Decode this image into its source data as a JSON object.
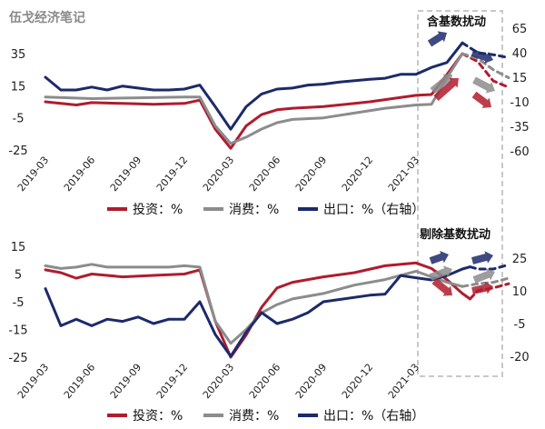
{
  "watermark": "伍戈经济笔记",
  "colors": {
    "investment": "#b01c2e",
    "consumption": "#8c8c8c",
    "export": "#1c2a6b",
    "box": "#c8c8c8",
    "bg": "#ffffff"
  },
  "chart_data": [
    {
      "type": "line",
      "name": "top",
      "annotation": "含基数扰动",
      "x": [
        "2019-03",
        "2019-06",
        "2019-09",
        "2019-12",
        "2020-03",
        "2020-06",
        "2020-09",
        "2020-12",
        "2021-03"
      ],
      "left_ticks": [
        35,
        15,
        -5,
        -25
      ],
      "right_ticks": [
        65,
        40,
        15,
        -10,
        -35,
        -60
      ],
      "legend": [
        {
          "key": "investment",
          "label": "投资：%"
        },
        {
          "key": "consumption",
          "label": "消费：%"
        },
        {
          "key": "export",
          "label": "出口：%（右轴）"
        }
      ],
      "series": [
        {
          "key": "investment",
          "axis": "left",
          "points": [
            [
              0,
              5
            ],
            [
              2,
              3
            ],
            [
              3,
              4.5
            ],
            [
              5,
              4
            ],
            [
              7,
              3.5
            ],
            [
              9,
              4
            ],
            [
              10,
              6
            ],
            [
              11,
              -12
            ],
            [
              12,
              -24
            ],
            [
              13,
              -10
            ],
            [
              14,
              -3
            ],
            [
              15,
              0
            ],
            [
              16,
              1
            ],
            [
              18,
              2
            ],
            [
              21,
              5
            ],
            [
              24,
              9
            ],
            [
              25,
              9.5
            ],
            [
              26,
              22
            ],
            [
              27,
              35
            ]
          ],
          "proj": [
            [
              27,
              35
            ],
            [
              28,
              30
            ],
            [
              29,
              18
            ],
            [
              30,
              14
            ]
          ]
        },
        {
          "key": "consumption",
          "axis": "left",
          "points": [
            [
              0,
              8
            ],
            [
              3,
              7
            ],
            [
              6,
              7.5
            ],
            [
              9,
              8
            ],
            [
              10,
              8
            ],
            [
              11,
              -10
            ],
            [
              12,
              -21
            ],
            [
              13,
              -17
            ],
            [
              14,
              -12
            ],
            [
              15,
              -8
            ],
            [
              16,
              -6
            ],
            [
              18,
              -5
            ],
            [
              20,
              -2
            ],
            [
              22,
              1
            ],
            [
              24,
              3
            ],
            [
              25,
              3.5
            ],
            [
              26,
              20
            ],
            [
              27,
              35
            ]
          ],
          "proj": [
            [
              27,
              35
            ],
            [
              28,
              32
            ],
            [
              29,
              25
            ],
            [
              30,
              20
            ]
          ]
        },
        {
          "key": "export",
          "axis": "right",
          "points": [
            [
              0,
              15
            ],
            [
              1,
              2
            ],
            [
              2,
              2
            ],
            [
              3,
              5
            ],
            [
              4,
              2
            ],
            [
              5,
              6
            ],
            [
              6,
              4
            ],
            [
              7,
              2
            ],
            [
              8,
              2
            ],
            [
              9,
              3
            ],
            [
              10,
              7
            ],
            [
              11,
              -15
            ],
            [
              12,
              -38
            ],
            [
              13,
              -15
            ],
            [
              14,
              -2
            ],
            [
              15,
              3
            ],
            [
              16,
              4
            ],
            [
              17,
              7
            ],
            [
              18,
              8
            ],
            [
              19,
              10
            ],
            [
              21,
              13
            ],
            [
              22,
              14
            ],
            [
              23,
              18
            ],
            [
              24,
              18
            ],
            [
              25,
              25
            ],
            [
              26,
              30
            ],
            [
              27,
              50
            ]
          ],
          "proj": [
            [
              27,
              50
            ],
            [
              28,
              40
            ],
            [
              29,
              38
            ],
            [
              30,
              35
            ]
          ]
        }
      ],
      "arrows": [
        {
          "key": "export",
          "dir": "up"
        },
        {
          "key": "consumption",
          "dir": "up"
        },
        {
          "key": "investment",
          "dir": "up"
        },
        {
          "key": "export",
          "dir": "down"
        },
        {
          "key": "consumption",
          "dir": "down"
        },
        {
          "key": "investment",
          "dir": "down"
        }
      ]
    },
    {
      "type": "line",
      "name": "bottom",
      "annotation": "剔除基数扰动",
      "x": [
        "2019-03",
        "2019-06",
        "2019-09",
        "2019-12",
        "2020-03",
        "2020-06",
        "2020-09",
        "2020-12",
        "2021-03"
      ],
      "left_ticks": [
        15,
        5,
        -5,
        -15,
        -25
      ],
      "right_ticks": [
        25,
        10,
        -5,
        -20
      ],
      "legend": [
        {
          "key": "investment",
          "label": "投资：%"
        },
        {
          "key": "consumption",
          "label": "消费：%"
        },
        {
          "key": "export",
          "label": "出口：%（右轴）"
        }
      ],
      "series": [
        {
          "key": "investment",
          "axis": "left",
          "points": [
            [
              0,
              6.5
            ],
            [
              1,
              5.5
            ],
            [
              2,
              3.5
            ],
            [
              3,
              5
            ],
            [
              4,
              4.5
            ],
            [
              5,
              4
            ],
            [
              7,
              4.5
            ],
            [
              9,
              5
            ],
            [
              10,
              6.5
            ],
            [
              11,
              -12
            ],
            [
              12,
              -25
            ],
            [
              13,
              -17
            ],
            [
              14,
              -7
            ],
            [
              15,
              0
            ],
            [
              16,
              2
            ],
            [
              18,
              4
            ],
            [
              20,
              5.5
            ],
            [
              22,
              8
            ],
            [
              24,
              9
            ],
            [
              25,
              7
            ],
            [
              26,
              3
            ],
            [
              27,
              -2
            ],
            [
              27.5,
              -4
            ]
          ],
          "proj": [
            [
              27.5,
              -4
            ],
            [
              28,
              -1
            ],
            [
              29,
              0
            ],
            [
              30,
              1.5
            ]
          ]
        },
        {
          "key": "consumption",
          "axis": "left",
          "points": [
            [
              0,
              8
            ],
            [
              1,
              7
            ],
            [
              2,
              7.5
            ],
            [
              3,
              8.5
            ],
            [
              4,
              7.5
            ],
            [
              6,
              7.5
            ],
            [
              8,
              7.5
            ],
            [
              9,
              8
            ],
            [
              10,
              7.5
            ],
            [
              11,
              -12
            ],
            [
              12,
              -20
            ],
            [
              13,
              -15
            ],
            [
              14,
              -9
            ],
            [
              15,
              -6
            ],
            [
              16,
              -4
            ],
            [
              18,
              -2
            ],
            [
              20,
              1
            ],
            [
              22,
              3
            ],
            [
              24,
              6
            ],
            [
              25,
              4
            ],
            [
              26,
              2
            ],
            [
              27,
              0.5
            ]
          ],
          "proj": [
            [
              27,
              0.5
            ],
            [
              28,
              1.5
            ],
            [
              29,
              2
            ],
            [
              30,
              3.5
            ]
          ]
        },
        {
          "key": "export",
          "axis": "right",
          "points": [
            [
              0,
              11
            ],
            [
              1,
              -6
            ],
            [
              2,
              -3
            ],
            [
              3,
              -6
            ],
            [
              4,
              -3
            ],
            [
              5,
              -4
            ],
            [
              6,
              -2
            ],
            [
              7,
              -5
            ],
            [
              8,
              -3
            ],
            [
              9,
              -3
            ],
            [
              10,
              5
            ],
            [
              11,
              -10
            ],
            [
              12,
              -20
            ],
            [
              13,
              -9
            ],
            [
              14,
              0
            ],
            [
              15,
              -5
            ],
            [
              16,
              -3
            ],
            [
              17,
              0
            ],
            [
              18,
              5
            ],
            [
              19,
              6
            ],
            [
              21,
              8
            ],
            [
              22,
              8.5
            ],
            [
              23,
              17
            ],
            [
              24,
              16
            ],
            [
              25,
              15
            ],
            [
              26,
              17
            ],
            [
              27,
              20
            ],
            [
              27.5,
              21
            ]
          ],
          "proj": [
            [
              27.5,
              21
            ],
            [
              28,
              20
            ],
            [
              29,
              20
            ],
            [
              30,
              22
            ]
          ]
        }
      ],
      "arrows": [
        {
          "key": "export",
          "dir": "up"
        },
        {
          "key": "consumption",
          "dir": "up"
        },
        {
          "key": "investment",
          "dir": "up"
        },
        {
          "key": "export",
          "dir": "down"
        },
        {
          "key": "consumption",
          "dir": "down"
        },
        {
          "key": "investment",
          "dir": "down"
        }
      ]
    }
  ]
}
